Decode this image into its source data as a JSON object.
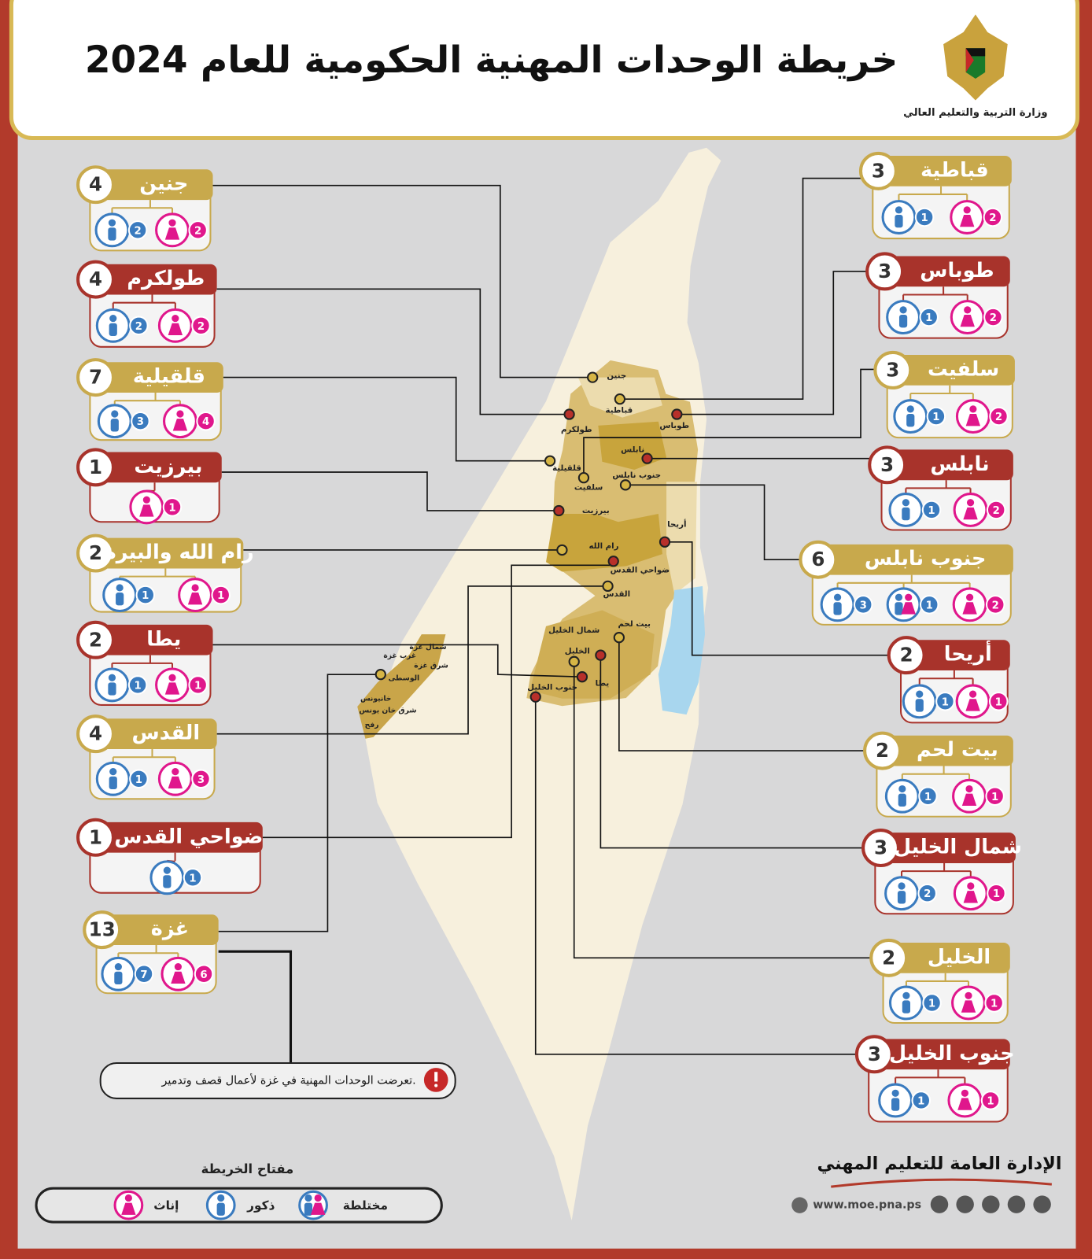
{
  "header": {
    "title": "خريطة الوحدات المهنية الحكومية للعام 2024",
    "ministry": "وزارة التربية والتعليم العالي"
  },
  "districts": [
    {
      "name": "جنين",
      "total": 4,
      "male": 2,
      "female": 2,
      "map_label": "جنين"
    },
    {
      "name": "طولكرم",
      "total": 4,
      "male": 2,
      "female": 2,
      "map_label": "طولكرم"
    },
    {
      "name": "قلقيلية",
      "total": 7,
      "male": 3,
      "female": 4,
      "map_label": "قلقيلية"
    },
    {
      "name": "بيرزيت",
      "total": 1,
      "female": 1,
      "map_label": "بيرزيت"
    },
    {
      "name": "رام الله والبيرة",
      "total": 2,
      "male": 1,
      "female": 1,
      "map_label": "رام الله"
    },
    {
      "name": "يطا",
      "total": 2,
      "male": 1,
      "female": 1,
      "map_label": "يطا"
    },
    {
      "name": "القدس",
      "total": 4,
      "male": 1,
      "female": 3,
      "map_label": "القدس"
    },
    {
      "name": "ضواحي القدس",
      "total": 1,
      "male": 1,
      "map_label": "ضواحي القدس"
    },
    {
      "name": "غزة",
      "total": 13,
      "male": 7,
      "female": 6
    },
    {
      "name": "قباطية",
      "total": 3,
      "male": 1,
      "female": 2,
      "map_label": "قباطية"
    },
    {
      "name": "طوباس",
      "total": 3,
      "male": 1,
      "female": 2,
      "map_label": "طوباس"
    },
    {
      "name": "سلفيت",
      "total": 3,
      "male": 1,
      "female": 2,
      "map_label": "سلفيت"
    },
    {
      "name": "نابلس",
      "total": 3,
      "male": 1,
      "female": 2,
      "map_label": "نابلس"
    },
    {
      "name": "جنوب نابلس",
      "total": 6,
      "male": 3,
      "mixed": 1,
      "female": 2,
      "map_label": "جنوب نابلس"
    },
    {
      "name": "أريحا",
      "total": 2,
      "male": 1,
      "female": 1,
      "map_label": "أريحا"
    },
    {
      "name": "بيت لحم",
      "total": 2,
      "male": 1,
      "female": 1,
      "map_label": "بيت لحم"
    },
    {
      "name": "شمال الخليل",
      "total": 3,
      "male": 2,
      "female": 1,
      "map_label": "شمال الخليل"
    },
    {
      "name": "الخليل",
      "total": 2,
      "male": 1,
      "female": 1,
      "map_label": "الخليل"
    },
    {
      "name": "جنوب الخليل",
      "total": 3,
      "male": 1,
      "female": 1,
      "map_label": "جنوب الخليل"
    }
  ],
  "gaza_labels": [
    "شمال غزة",
    "غرب غزة",
    "شرق غزة",
    "الوسطى",
    "خانيونس",
    "شرق خان يونس",
    "رفح"
  ],
  "note": "تعرضت الوحدات المهنية في غزة لأعمال قصف وتدمير.",
  "legend": {
    "title": "مفتاح الخريطة",
    "female": "إناث",
    "male": "ذكور",
    "mixed": "مختلطة"
  },
  "footer": {
    "department": "الإدارة العامة للتعليم المهني",
    "website": "www.moe.pna.ps"
  }
}
